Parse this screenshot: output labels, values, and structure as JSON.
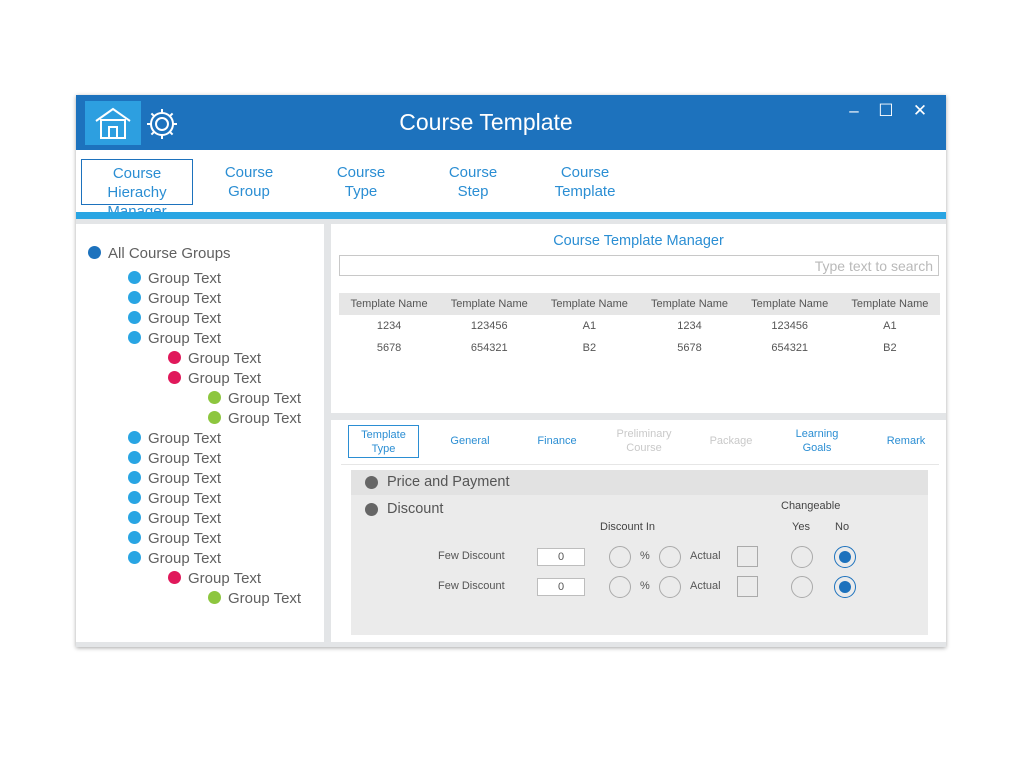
{
  "window": {
    "title": "Course Template",
    "controls": {
      "minimize": "–",
      "maximize": "☐",
      "close": "✕"
    },
    "icons": {
      "home": "home-icon",
      "settings": "gear-icon"
    }
  },
  "nav": {
    "items": [
      {
        "line1": "Course Hierachy",
        "line2": "Manager"
      },
      {
        "line1": "Course",
        "line2": "Group"
      },
      {
        "line1": "Course",
        "line2": "Type"
      },
      {
        "line1": "Course",
        "line2": "Step"
      },
      {
        "line1": "Course",
        "line2": "Template"
      }
    ],
    "active_index": 0
  },
  "tree": {
    "root": "All Course Groups",
    "items": [
      {
        "label": "Group Text",
        "level": 1
      },
      {
        "label": "Group Text",
        "level": 1
      },
      {
        "label": "Group Text",
        "level": 1
      },
      {
        "label": "Group Text",
        "level": 1
      },
      {
        "label": "Group Text",
        "level": 2
      },
      {
        "label": "Group Text",
        "level": 2
      },
      {
        "label": "Group Text",
        "level": 3
      },
      {
        "label": "Group Text",
        "level": 3
      },
      {
        "label": "Group Text",
        "level": 1
      },
      {
        "label": "Group Text",
        "level": 1
      },
      {
        "label": "Group Text",
        "level": 1
      },
      {
        "label": "Group Text",
        "level": 1
      },
      {
        "label": "Group Text",
        "level": 1
      },
      {
        "label": "Group Text",
        "level": 1
      },
      {
        "label": "Group Text",
        "level": 1
      },
      {
        "label": "Group Text",
        "level": 2
      },
      {
        "label": "Group Text",
        "level": 3
      }
    ]
  },
  "colors": {
    "titlebar": "#1d72bd",
    "accent": "#29a5e3",
    "link": "#2b8ed3",
    "root_dot": "#1d72bd",
    "level1_dot": "#29a5e3",
    "level2_dot": "#e0195b",
    "level3_dot": "#8dc63f"
  },
  "manager": {
    "title": "Course Template Manager",
    "search_placeholder": "Type text to search",
    "columns": [
      "Template Name",
      "Template Name",
      "Template Name",
      "Template Name",
      "Template Name",
      "Template Name"
    ],
    "rows": [
      [
        "1234",
        "123456",
        "A1",
        "1234",
        "123456",
        "A1"
      ],
      [
        "5678",
        "654321",
        "B2",
        "5678",
        "654321",
        "B2"
      ]
    ]
  },
  "tabs": [
    {
      "line1": "Template",
      "line2": "Type",
      "state": "active"
    },
    {
      "line1": "General",
      "line2": "",
      "state": "normal"
    },
    {
      "line1": "Finance",
      "line2": "",
      "state": "normal"
    },
    {
      "line1": "Preliminary",
      "line2": "Course",
      "state": "disabled"
    },
    {
      "line1": "Package",
      "line2": "",
      "state": "disabled"
    },
    {
      "line1": "Learning",
      "line2": "Goals",
      "state": "normal"
    },
    {
      "line1": "Remark",
      "line2": "",
      "state": "normal"
    }
  ],
  "sections": {
    "price": "Price and Payment",
    "discount": "Discount"
  },
  "discount": {
    "discount_in_label": "Discount In",
    "changeable_label": "Changeable",
    "yes_label": "Yes",
    "no_label": "No",
    "percent_label": "%",
    "actual_label": "Actual",
    "rows": [
      {
        "label": "Few Discount",
        "value": "0",
        "changeable": "No"
      },
      {
        "label": "Few Discount",
        "value": "0",
        "changeable": "No"
      }
    ]
  }
}
